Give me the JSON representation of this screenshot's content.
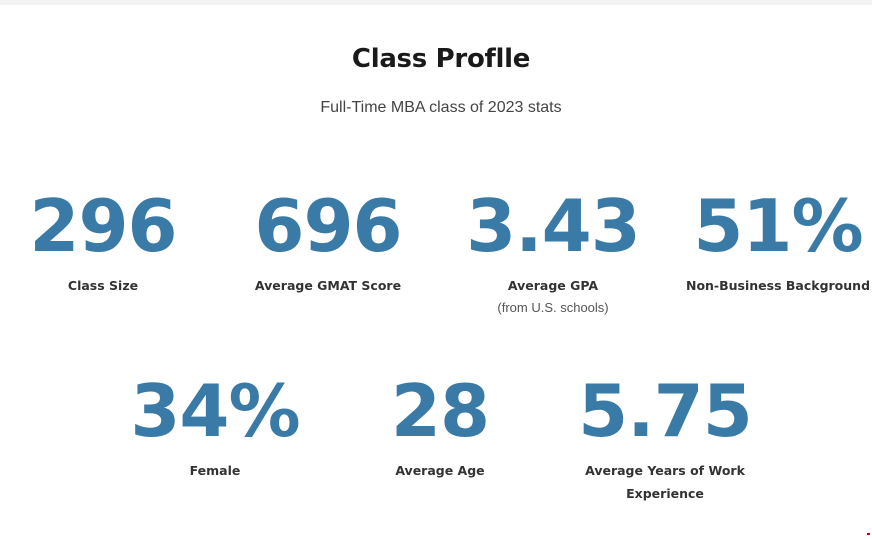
{
  "header": {
    "title": "Class Proflle",
    "subtitle": "Full-Time MBA class of 2023 stats"
  },
  "stats_row1": [
    {
      "value": "296",
      "label": "Class Size",
      "note": ""
    },
    {
      "value": "696",
      "label": "Average GMAT Score",
      "note": ""
    },
    {
      "value": "3.43",
      "label": "Average GPA",
      "note": "(from U.S. schools)"
    },
    {
      "value": "51%",
      "label": "Non-Business Background",
      "note": ""
    }
  ],
  "stats_row2": [
    {
      "value": "34%",
      "label": "Female"
    },
    {
      "value": "28",
      "label": "Average Age"
    },
    {
      "value": "5.75",
      "label": "Average Years of Work Experience"
    }
  ],
  "colors": {
    "stat_number": "#3a7aa6",
    "title": "#1a1a1a"
  }
}
